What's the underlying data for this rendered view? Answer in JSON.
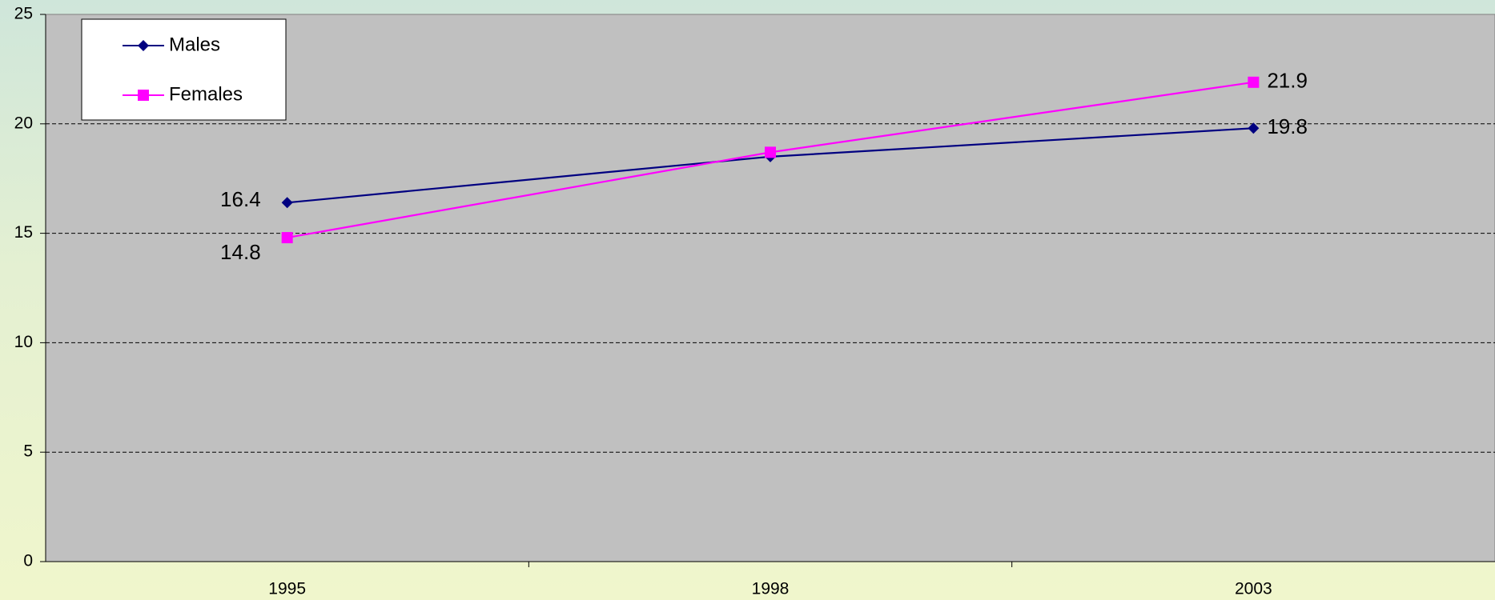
{
  "chart_data": {
    "type": "line",
    "categories": [
      "1995",
      "1998",
      "2003"
    ],
    "series": [
      {
        "name": "Males",
        "color": "#000080",
        "marker": "diamond",
        "values": [
          16.4,
          18.5,
          19.8
        ],
        "value_labels": [
          "16.4",
          null,
          "19.8"
        ]
      },
      {
        "name": "Females",
        "color": "#ff00ff",
        "marker": "square",
        "values": [
          14.8,
          18.7,
          21.9
        ],
        "value_labels": [
          "14.8",
          null,
          "21.9"
        ]
      }
    ],
    "ylim": [
      0,
      25
    ],
    "yticks": [
      0,
      5,
      10,
      15,
      20,
      25
    ],
    "grid": true,
    "legend": "top-left"
  }
}
